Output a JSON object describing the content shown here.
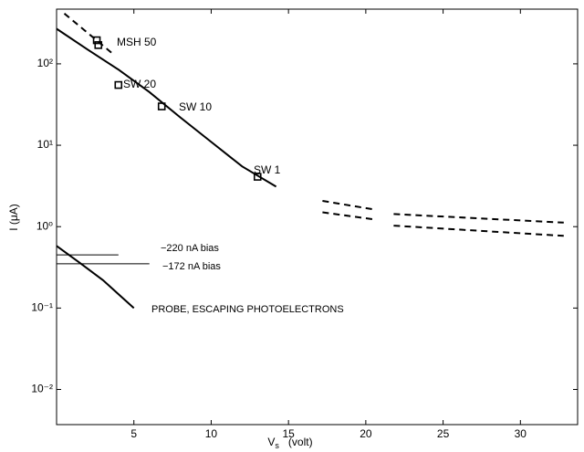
{
  "chart_data": {
    "type": "line",
    "x_label": "V",
    "x_label_sub": "s",
    "x_label_unit": "(volt)",
    "y_label": "I (μA)",
    "log_y": true,
    "xlim": [
      0,
      33.7
    ],
    "ylim": [
      0.0037,
      470
    ],
    "xticks": [
      5,
      10,
      15,
      20,
      25,
      30
    ],
    "yticks": [
      {
        "value": 0.01,
        "label": "10⁻²"
      },
      {
        "value": 0.1,
        "label": "10⁻¹"
      },
      {
        "value": 1,
        "label": "10⁰"
      },
      {
        "value": 10,
        "label": "10¹"
      },
      {
        "value": 100,
        "label": "10²"
      }
    ],
    "series": [
      {
        "color": "#000000",
        "dash": false,
        "width": 2,
        "x": [
          0,
          2,
          4,
          6,
          8,
          10,
          12,
          14.2
        ],
        "values": [
          270,
          150,
          85,
          45,
          22,
          11,
          5.5,
          3.1
        ]
      },
      {
        "color": "#000000",
        "dash": true,
        "width": 2,
        "x": [
          0.5,
          3.7
        ],
        "values": [
          415,
          130
        ]
      },
      {
        "color": "#000000",
        "dash": true,
        "width": 2,
        "x": [
          17.2,
          20.5
        ],
        "values": [
          2.07,
          1.63
        ]
      },
      {
        "color": "#000000",
        "dash": true,
        "width": 2,
        "x": [
          17.2,
          20.5
        ],
        "values": [
          1.5,
          1.23
        ]
      },
      {
        "color": "#000000",
        "dash": true,
        "width": 2,
        "x": [
          21.8,
          32.8
        ],
        "values": [
          1.43,
          1.12
        ]
      },
      {
        "color": "#000000",
        "dash": true,
        "width": 2,
        "x": [
          21.8,
          32.8
        ],
        "values": [
          1.03,
          0.77
        ]
      },
      {
        "color": "#000000",
        "dash": false,
        "width": 2,
        "x": [
          0,
          1.5,
          3,
          5
        ],
        "values": [
          0.58,
          0.36,
          0.22,
          0.1
        ]
      },
      {
        "color": "#000000",
        "dash": false,
        "width": 1,
        "x": [
          0,
          4
        ],
        "values": [
          0.45,
          0.45
        ]
      },
      {
        "color": "#000000",
        "dash": false,
        "width": 1,
        "x": [
          0,
          6
        ],
        "values": [
          0.35,
          0.35
        ]
      }
    ],
    "markers": {
      "color": "#000000",
      "x": [
        2.6,
        2.7,
        4,
        6.8,
        13
      ],
      "values": [
        195,
        170,
        55,
        30,
        4.1
      ]
    },
    "annotations": [
      "MSH 50",
      "SW 20",
      "SW 10",
      "SW 1",
      "−220 nA bias",
      "−172 nA bias",
      "PROBE, ESCAPING PHOTOELECTRONS"
    ]
  }
}
